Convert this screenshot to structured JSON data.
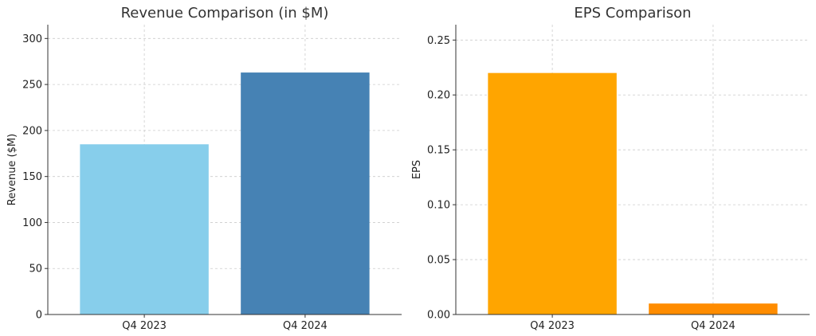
{
  "chart_data": [
    {
      "type": "bar",
      "title": "Revenue Comparison (in $M)",
      "xlabel": "",
      "ylabel": "Revenue ($M)",
      "categories": [
        "Q4 2023",
        "Q4 2024"
      ],
      "values": [
        185,
        263
      ],
      "colors": [
        "#87ceeb",
        "#4682b4"
      ],
      "ylim": [
        0,
        315
      ],
      "yticks": [
        0,
        50,
        100,
        150,
        200,
        250,
        300
      ],
      "ytick_labels": [
        "0",
        "50",
        "100",
        "150",
        "200",
        "250",
        "300"
      ],
      "grid": true
    },
    {
      "type": "bar",
      "title": "EPS Comparison",
      "xlabel": "",
      "ylabel": "EPS",
      "categories": [
        "Q4 2023",
        "Q4 2024"
      ],
      "values": [
        0.22,
        0.01
      ],
      "colors": [
        "#ffa500",
        "#ff8c00"
      ],
      "ylim": [
        0,
        0.264
      ],
      "yticks": [
        0,
        0.05,
        0.1,
        0.15,
        0.2,
        0.25
      ],
      "ytick_labels": [
        "0.00",
        "0.05",
        "0.10",
        "0.15",
        "0.20",
        "0.25"
      ],
      "grid": true
    }
  ]
}
